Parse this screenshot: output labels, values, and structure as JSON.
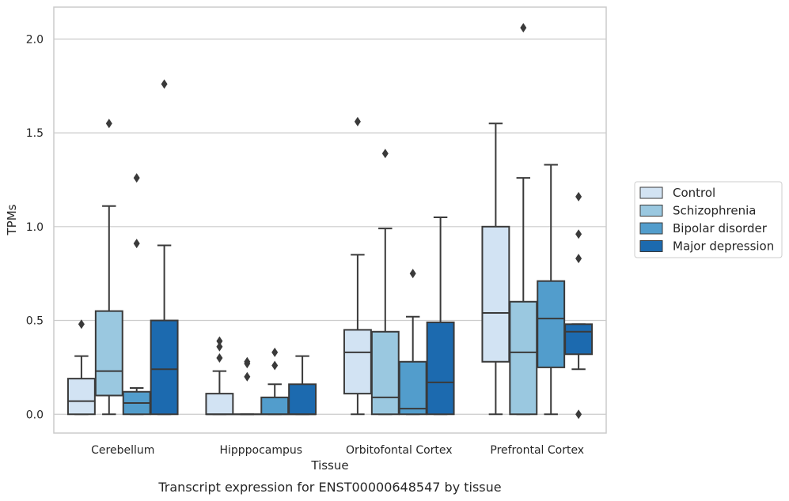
{
  "chart_data": {
    "type": "box",
    "xlabel": "Tissue",
    "ylabel": "TPMs",
    "caption": "Transcript expression for ENST00000648547 by tissue",
    "ylim": [
      -0.1,
      2.17
    ],
    "yticks": [
      "0.0",
      "0.5",
      "1.0",
      "1.5",
      "2.0"
    ],
    "ytick_values": [
      0.0,
      0.5,
      1.0,
      1.5,
      2.0
    ],
    "grid": "horizontal",
    "legend_position": "right",
    "categories": [
      "Cerebellum",
      "Hipppocampus",
      "Orbitofontal Cortex",
      "Prefrontal Cortex"
    ],
    "series": [
      {
        "name": "Control",
        "color": "#d2e3f3",
        "boxes": [
          {
            "whislo": 0.0,
            "q1": 0.0,
            "med": 0.07,
            "q3": 0.19,
            "whishi": 0.31,
            "fliers": [
              0.48
            ]
          },
          {
            "whislo": 0.0,
            "q1": 0.0,
            "med": 0.0,
            "q3": 0.11,
            "whishi": 0.23,
            "fliers": [
              0.3,
              0.36,
              0.39
            ]
          },
          {
            "whislo": 0.0,
            "q1": 0.11,
            "med": 0.33,
            "q3": 0.45,
            "whishi": 0.85,
            "fliers": [
              1.56
            ]
          },
          {
            "whislo": 0.0,
            "q1": 0.28,
            "med": 0.54,
            "q3": 1.0,
            "whishi": 1.55,
            "fliers": []
          }
        ]
      },
      {
        "name": "Schizophrenia",
        "color": "#9ac8e0",
        "boxes": [
          {
            "whislo": 0.0,
            "q1": 0.1,
            "med": 0.23,
            "q3": 0.55,
            "whishi": 1.11,
            "fliers": [
              1.55
            ]
          },
          {
            "whislo": 0.0,
            "q1": 0.0,
            "med": 0.0,
            "q3": 0.0,
            "whishi": 0.0,
            "fliers": [
              0.2,
              0.27,
              0.28
            ]
          },
          {
            "whislo": 0.0,
            "q1": 0.0,
            "med": 0.09,
            "q3": 0.44,
            "whishi": 0.99,
            "fliers": [
              1.39
            ]
          },
          {
            "whislo": 0.0,
            "q1": 0.0,
            "med": 0.33,
            "q3": 0.6,
            "whishi": 1.26,
            "fliers": [
              2.06
            ]
          }
        ]
      },
      {
        "name": "Bipolar disorder",
        "color": "#529dcc",
        "boxes": [
          {
            "whislo": 0.0,
            "q1": 0.0,
            "med": 0.06,
            "q3": 0.12,
            "whishi": 0.14,
            "fliers": [
              0.91,
              1.26
            ]
          },
          {
            "whislo": 0.0,
            "q1": 0.0,
            "med": 0.0,
            "q3": 0.09,
            "whishi": 0.16,
            "fliers": [
              0.26,
              0.33
            ]
          },
          {
            "whislo": 0.0,
            "q1": 0.0,
            "med": 0.03,
            "q3": 0.28,
            "whishi": 0.52,
            "fliers": [
              0.75
            ]
          },
          {
            "whislo": 0.0,
            "q1": 0.25,
            "med": 0.51,
            "q3": 0.71,
            "whishi": 1.33,
            "fliers": []
          }
        ]
      },
      {
        "name": "Major depression",
        "color": "#1c6aaf",
        "boxes": [
          {
            "whislo": 0.0,
            "q1": 0.0,
            "med": 0.24,
            "q3": 0.5,
            "whishi": 0.9,
            "fliers": [
              1.76
            ]
          },
          {
            "whislo": 0.0,
            "q1": 0.0,
            "med": 0.0,
            "q3": 0.16,
            "whishi": 0.31,
            "fliers": []
          },
          {
            "whislo": 0.0,
            "q1": 0.0,
            "med": 0.17,
            "q3": 0.49,
            "whishi": 1.05,
            "fliers": []
          },
          {
            "whislo": 0.24,
            "q1": 0.32,
            "med": 0.44,
            "q3": 0.48,
            "whishi": 0.48,
            "fliers": [
              0.0,
              0.83,
              0.96,
              1.16
            ]
          }
        ]
      }
    ],
    "style": {
      "line_color": "#3a3a3a",
      "grid_color": "#cccccc",
      "frame_color": "#cccccc"
    }
  }
}
